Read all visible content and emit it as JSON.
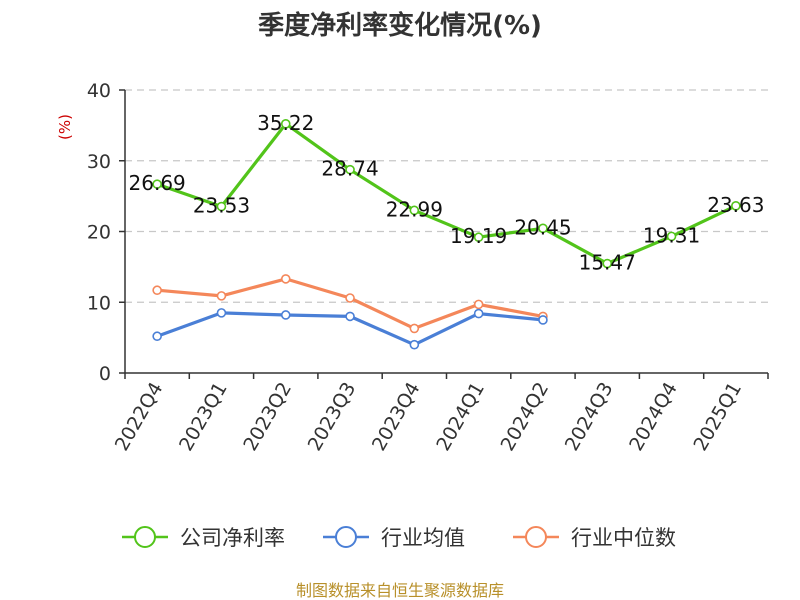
{
  "chart_data": {
    "type": "line",
    "title": "季度净利率变化情况(%)",
    "ylabel": "(%)",
    "xlabel": "",
    "ylim": [
      0,
      40
    ],
    "yticks": [
      0,
      10,
      20,
      30,
      40
    ],
    "grid": true,
    "legend_position": "bottom",
    "categories": [
      "2022Q4",
      "2023Q1",
      "2023Q2",
      "2023Q3",
      "2023Q4",
      "2024Q1",
      "2024Q2",
      "2024Q3",
      "2024Q4",
      "2025Q1"
    ],
    "series": [
      {
        "name": "公司净利率",
        "color": "#52c41a",
        "values": [
          26.69,
          23.53,
          35.22,
          28.74,
          22.99,
          19.19,
          20.45,
          15.47,
          19.31,
          23.63
        ],
        "labels": [
          "26.69",
          "23.53",
          "35.22",
          "28.74",
          "22.99",
          "19.19",
          "20.45",
          "15.47",
          "19.31",
          "23.63"
        ]
      },
      {
        "name": "行业均值",
        "color": "#4a7fd6",
        "values": [
          5.2,
          8.5,
          8.2,
          8.0,
          4.0,
          8.4,
          7.5,
          null,
          null,
          null
        ]
      },
      {
        "name": "行业中位数",
        "color": "#f4875a",
        "values": [
          11.7,
          10.9,
          13.3,
          10.6,
          6.3,
          9.7,
          8.0,
          null,
          null,
          null
        ]
      }
    ]
  },
  "footer": {
    "source": "制图数据来自恒生聚源数据库"
  }
}
